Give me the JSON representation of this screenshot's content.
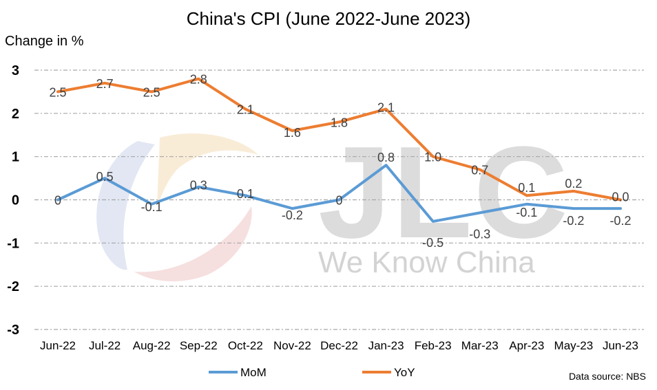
{
  "chart_data": {
    "type": "line",
    "title": "China's CPI (June 2022-June 2023)",
    "ylabel": "Change in %",
    "xlabel": "",
    "ylim": [
      -3,
      3
    ],
    "yticks": [
      3,
      2,
      1,
      0,
      -1,
      -2,
      -3
    ],
    "grid": true,
    "legend_position": "bottom",
    "categories": [
      "Jun-22",
      "Jul-22",
      "Aug-22",
      "Sep-22",
      "Oct-22",
      "Nov-22",
      "Dec-22",
      "Jan-23",
      "Feb-23",
      "Mar-23",
      "Apr-23",
      "May-23",
      "Jun-23"
    ],
    "series": [
      {
        "name": "MoM",
        "color": "#5b9bd5",
        "values": [
          0,
          0.5,
          -0.1,
          0.3,
          0.1,
          -0.2,
          0,
          0.8,
          -0.5,
          -0.3,
          -0.1,
          -0.2,
          -0.2
        ],
        "labels": [
          "0",
          "0.5",
          "-0.1",
          "0.3",
          "0.1",
          "-0.2",
          "0",
          "0.8",
          "-0.5",
          "-0.3",
          "-0.1",
          "-0.2",
          "-0.2"
        ]
      },
      {
        "name": "YoY",
        "color": "#ed7d31",
        "values": [
          2.5,
          2.7,
          2.5,
          2.8,
          2.1,
          1.6,
          1.8,
          2.1,
          1.0,
          0.7,
          0.1,
          0.2,
          0.0
        ],
        "labels": [
          "2.5",
          "2.7",
          "2.5",
          "2.8",
          "2.1",
          "1.6",
          "1.8",
          "2.1",
          "1.0",
          "0.7",
          "0.1",
          "0.2",
          "0.0"
        ]
      }
    ],
    "source_note": "Data source: NBS"
  },
  "watermark": {
    "logo_text": "JLC",
    "tagline": "We Know China",
    "colors": [
      "#d9dff0",
      "#f7e6cc",
      "#f3d6d6",
      "#cfcfcf"
    ]
  }
}
